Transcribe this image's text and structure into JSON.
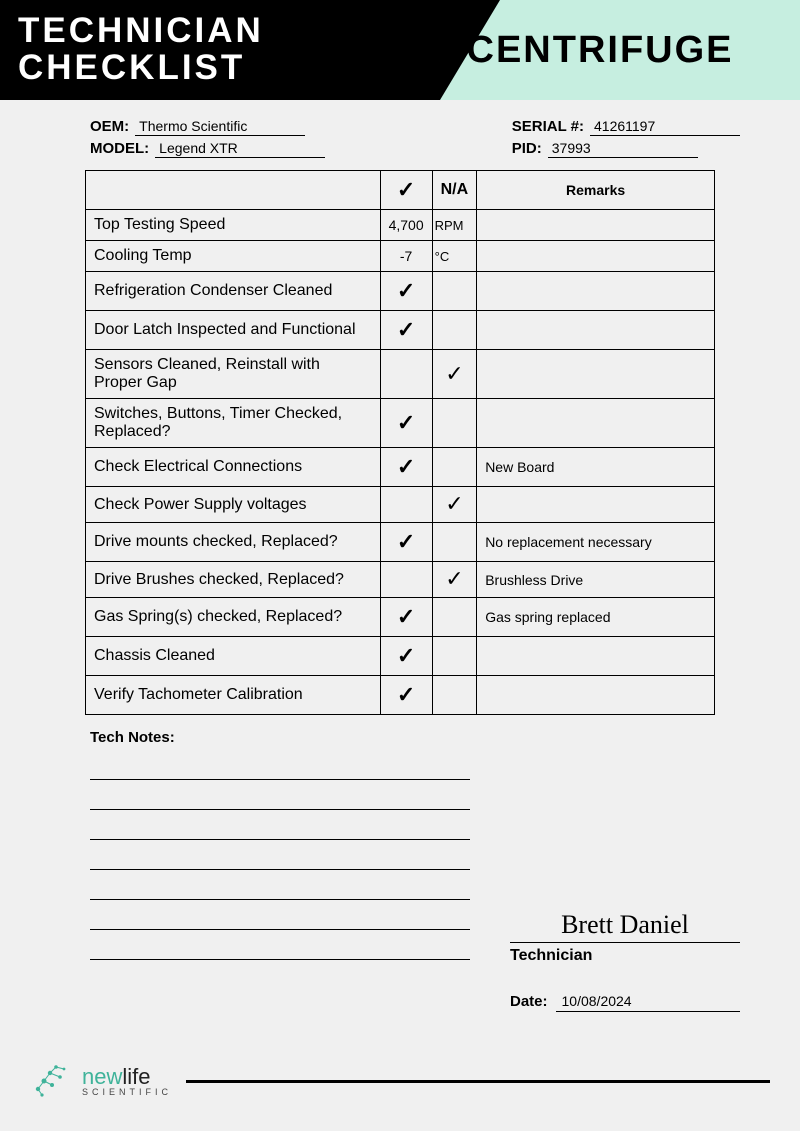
{
  "header": {
    "title_line1": "TECHNICIAN",
    "title_line2": "CHECKLIST",
    "category": "CENTRIFUGE",
    "colors": {
      "black": "#000000",
      "mint": "#c6eee0",
      "white": "#ffffff"
    }
  },
  "info": {
    "oem_label": "OEM:",
    "oem_value": "Thermo Scientific",
    "model_label": "MODEL:",
    "model_value": "Legend XTR",
    "serial_label": "SERIAL #:",
    "serial_value": "41261197",
    "pid_label": "PID:",
    "pid_value": "37993"
  },
  "table": {
    "header_check": "✓",
    "header_na": "N/A",
    "header_remarks": "Remarks",
    "rows": [
      {
        "item": "Top Testing Speed",
        "value": "4,700",
        "unit": "RPM",
        "check": "",
        "na": "",
        "remarks": ""
      },
      {
        "item": "Cooling Temp",
        "value": "-7",
        "unit": "°C",
        "check": "",
        "na": "",
        "remarks": ""
      },
      {
        "item": "Refrigeration Condenser Cleaned",
        "check": "✓",
        "na": "",
        "remarks": ""
      },
      {
        "item": "Door Latch Inspected and Functional",
        "check": "✓",
        "na": "",
        "remarks": ""
      },
      {
        "item": "Sensors Cleaned, Reinstall with Proper Gap",
        "check": "",
        "na": "✓",
        "remarks": ""
      },
      {
        "item": "Switches, Buttons, Timer Checked, Replaced?",
        "check": "✓",
        "na": "",
        "remarks": ""
      },
      {
        "item": "Check Electrical Connections",
        "check": "✓",
        "na": "",
        "remarks": "New Board"
      },
      {
        "item": "Check Power Supply voltages",
        "check": "",
        "na": "✓",
        "remarks": ""
      },
      {
        "item": "Drive mounts checked, Replaced?",
        "check": "✓",
        "na": "",
        "remarks": "No replacement necessary"
      },
      {
        "item": "Drive Brushes checked, Replaced?",
        "check": "",
        "na": "✓",
        "remarks": "Brushless Drive"
      },
      {
        "item": "Gas Spring(s) checked, Replaced?",
        "check": "✓",
        "na": "",
        "remarks": "Gas spring replaced"
      },
      {
        "item": "Chassis Cleaned",
        "check": "✓",
        "na": "",
        "remarks": ""
      },
      {
        "item": "Verify Tachometer Calibration",
        "check": "✓",
        "na": "",
        "remarks": ""
      }
    ]
  },
  "notes": {
    "label": "Tech Notes:",
    "line_count": 7
  },
  "signature": {
    "name": "Brett Daniel",
    "role": "Technician",
    "date_label": "Date:",
    "date_value": "10/08/2024"
  },
  "footer": {
    "brand_new": "new",
    "brand_life": "life",
    "brand_sub": "SCIENTIFIC",
    "accent_color": "#3fb39a"
  }
}
